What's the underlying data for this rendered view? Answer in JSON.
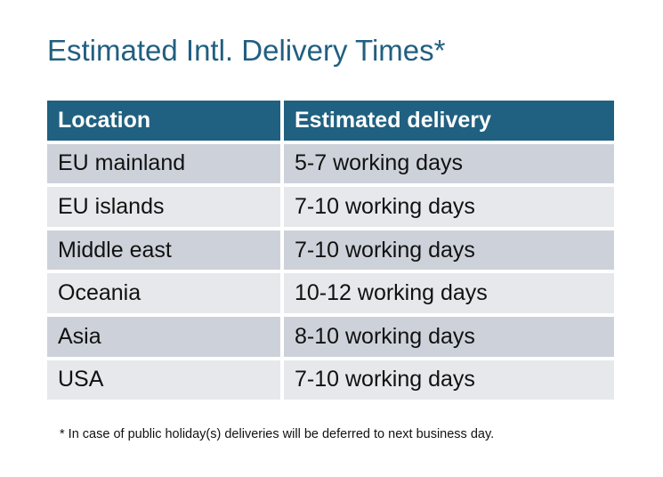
{
  "title": "Estimated Intl. Delivery Times*",
  "table": {
    "headers": [
      "Location",
      "Estimated delivery"
    ],
    "rows": [
      [
        "EU mainland",
        "5-7 working days"
      ],
      [
        "EU islands",
        "7-10 working days"
      ],
      [
        "Middle east",
        "7-10 working days"
      ],
      [
        "Oceania",
        "10-12 working days"
      ],
      [
        "Asia",
        "8-10 working days"
      ],
      [
        "USA",
        "7-10 working days"
      ]
    ]
  },
  "footnote": "* In case of public holiday(s) deliveries will be deferred to next business day.",
  "colors": {
    "header": "#206080",
    "row_dark": "#cdd2da",
    "row_light": "#e6e8eb",
    "title": "#215f80"
  }
}
